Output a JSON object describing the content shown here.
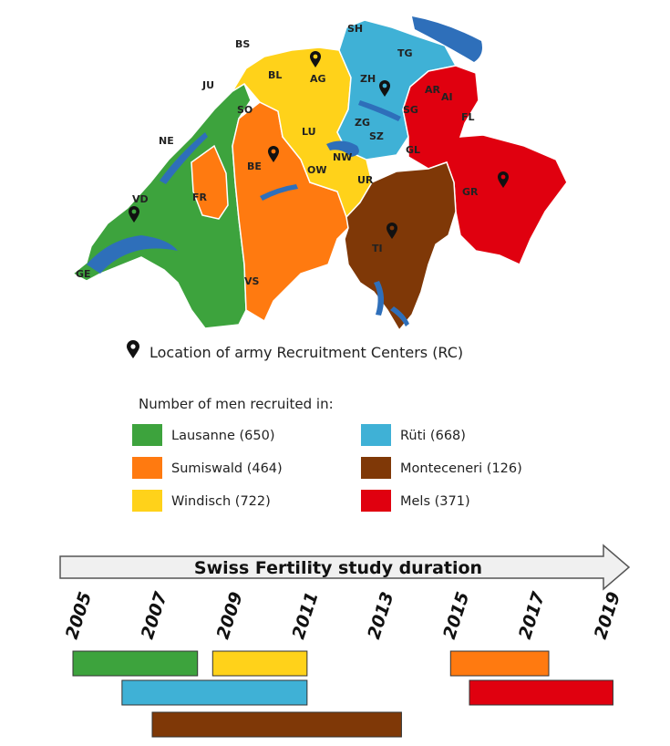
{
  "colors": {
    "lausanne": "#3da33d",
    "sumiswald": "#ff7a10",
    "windisch": "#ffd21a",
    "ruti": "#3fb1d6",
    "monteceneri": "#7f3807",
    "mels": "#e0000f",
    "lake": "#2e6fba",
    "border": "#e8e8e8"
  },
  "map": {
    "cantons": [
      "BS",
      "BL",
      "AG",
      "SH",
      "TG",
      "ZH",
      "AR",
      "AI",
      "JU",
      "SO",
      "SG",
      "FL",
      "LU",
      "ZG",
      "NE",
      "BE",
      "SZ",
      "NW",
      "GL",
      "OW",
      "FR",
      "UR",
      "GR",
      "VD",
      "TI",
      "GE",
      "VS"
    ],
    "pin_icon": "map-pin-icon",
    "pin_caption": "Location of army Recruitment Centers (RC)"
  },
  "legend": {
    "title": "Number of men recruited in:",
    "items": [
      {
        "label": "Lausanne (650)",
        "color": "#3da33d"
      },
      {
        "label": "Sumiswald (464)",
        "color": "#ff7a10"
      },
      {
        "label": "Windisch (722)",
        "color": "#ffd21a"
      },
      {
        "label": "Rüti (668)",
        "color": "#3fb1d6"
      },
      {
        "label": "Monteceneri (126)",
        "color": "#7f3807"
      },
      {
        "label": "Mels (371)",
        "color": "#e0000f"
      }
    ]
  },
  "timeline": {
    "title": "Swiss Fertility study duration",
    "years": [
      "2005",
      "2007",
      "2009",
      "2011",
      "2013",
      "2015",
      "2017",
      "2019"
    ],
    "start_year": 2005,
    "end_year": 2019,
    "bars": [
      {
        "center": "Lausanne",
        "start": 2005.0,
        "end": 2008.3,
        "color": "#3da33d",
        "row": 0
      },
      {
        "center": "Windisch",
        "start": 2008.7,
        "end": 2011.2,
        "color": "#ffd21a",
        "row": 0
      },
      {
        "center": "Sumiswald",
        "start": 2015.0,
        "end": 2017.6,
        "color": "#ff7a10",
        "row": 0
      },
      {
        "center": "Rüti",
        "start": 2006.3,
        "end": 2011.2,
        "color": "#3fb1d6",
        "row": 1
      },
      {
        "center": "Mels",
        "start": 2015.5,
        "end": 2019.3,
        "color": "#e0000f",
        "row": 1
      },
      {
        "center": "Monteceneri",
        "start": 2007.1,
        "end": 2013.7,
        "color": "#7f3807",
        "row": 2
      }
    ]
  }
}
